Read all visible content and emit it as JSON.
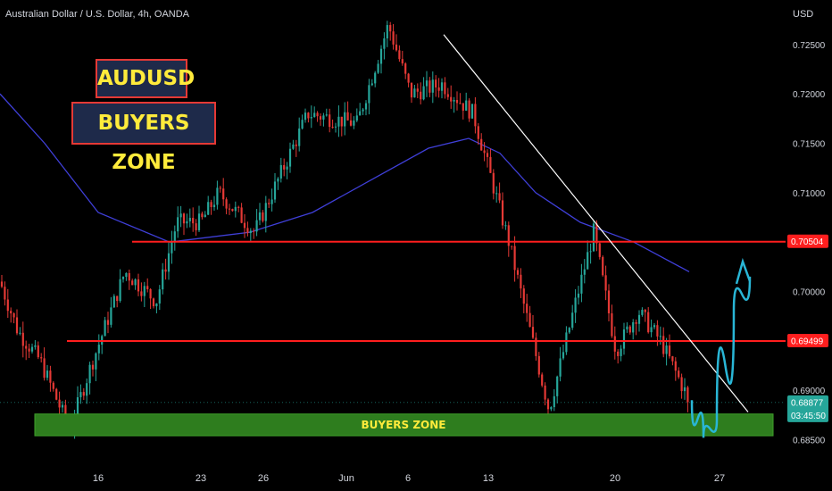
{
  "header": {
    "symbol": "Australian Dollar / U.S. Dollar, 4h, OANDA",
    "currency": "USD"
  },
  "annotations": {
    "title": "AUDUSD",
    "subtitle": "BUYERS ZONE",
    "zone_label": "BUYERS ZONE"
  },
  "colors": {
    "background": "#000000",
    "up_candle": "#26a69a",
    "down_candle": "#e53935",
    "ma_line": "#3f3fd8",
    "level_line": "#ff1e1e",
    "trendline": "#ffffff",
    "projection": "#29b6d6",
    "zone_fill": "#2e7d1e",
    "zone_text": "#ffeb3b",
    "price_badge": "#26a69a"
  },
  "chart_data": {
    "type": "candlestick",
    "title": "Australian Dollar / U.S. Dollar, 4h, OANDA",
    "x_tick_labels": [
      "16",
      "23",
      "26",
      "Jun",
      "6",
      "13",
      "20",
      "27"
    ],
    "y_tick_labels": [
      "0.72500",
      "0.72000",
      "0.71500",
      "0.71000",
      "0.70000",
      "0.69000",
      "0.68500"
    ],
    "ylim": [
      0.6827,
      0.7295
    ],
    "horizontal_levels": [
      0.70504,
      0.69499
    ],
    "buyers_zone": [
      0.6854,
      0.6876
    ],
    "last_price": "0.68877",
    "countdown": "03:45:50",
    "path_keypoints": [
      {
        "x": 0,
        "price": 0.701
      },
      {
        "x": 20,
        "price": 0.696
      },
      {
        "x": 45,
        "price": 0.693
      },
      {
        "x": 78,
        "price": 0.686
      },
      {
        "x": 100,
        "price": 0.692
      },
      {
        "x": 140,
        "price": 0.702
      },
      {
        "x": 175,
        "price": 0.699
      },
      {
        "x": 198,
        "price": 0.707
      },
      {
        "x": 225,
        "price": 0.707
      },
      {
        "x": 245,
        "price": 0.71
      },
      {
        "x": 285,
        "price": 0.706
      },
      {
        "x": 345,
        "price": 0.718
      },
      {
        "x": 400,
        "price": 0.717
      },
      {
        "x": 435,
        "price": 0.727
      },
      {
        "x": 460,
        "price": 0.72
      },
      {
        "x": 495,
        "price": 0.721
      },
      {
        "x": 530,
        "price": 0.718
      },
      {
        "x": 570,
        "price": 0.705
      },
      {
        "x": 615,
        "price": 0.688
      },
      {
        "x": 645,
        "price": 0.699
      },
      {
        "x": 665,
        "price": 0.706
      },
      {
        "x": 690,
        "price": 0.694
      },
      {
        "x": 715,
        "price": 0.698
      },
      {
        "x": 740,
        "price": 0.695
      },
      {
        "x": 773,
        "price": 0.6888
      }
    ],
    "moving_average": [
      {
        "x": 0,
        "price": 0.72
      },
      {
        "x": 50,
        "price": 0.715
      },
      {
        "x": 110,
        "price": 0.708
      },
      {
        "x": 190,
        "price": 0.705
      },
      {
        "x": 280,
        "price": 0.706
      },
      {
        "x": 350,
        "price": 0.708
      },
      {
        "x": 420,
        "price": 0.7115
      },
      {
        "x": 480,
        "price": 0.7145
      },
      {
        "x": 525,
        "price": 0.7155
      },
      {
        "x": 560,
        "price": 0.714
      },
      {
        "x": 600,
        "price": 0.71
      },
      {
        "x": 650,
        "price": 0.707
      },
      {
        "x": 710,
        "price": 0.705
      },
      {
        "x": 772,
        "price": 0.702
      }
    ],
    "trendline": [
      {
        "x": 497,
        "price": 0.726
      },
      {
        "x": 838,
        "price": 0.6878
      }
    ],
    "projection_path": [
      {
        "x": 775,
        "price": 0.689
      },
      {
        "x": 788,
        "price": 0.6852
      },
      {
        "x": 803,
        "price": 0.687
      },
      {
        "x": 822,
        "price": 0.698
      },
      {
        "x": 840,
        "price": 0.7015
      }
    ]
  }
}
